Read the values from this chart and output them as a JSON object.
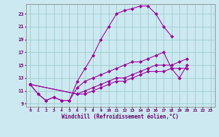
{
  "background_color": "#cce8f0",
  "grid_color": "#99cccc",
  "line_color": "#990099",
  "marker_color": "#990099",
  "xlabel": "Windchill (Refroidissement éolien,°C)",
  "xlabel_color": "#660066",
  "tick_color": "#660066",
  "xlim": [
    -0.5,
    23.5
  ],
  "ylim": [
    8.5,
    24.5
  ],
  "xticks": [
    0,
    1,
    2,
    3,
    4,
    5,
    6,
    7,
    8,
    9,
    10,
    11,
    12,
    13,
    14,
    15,
    16,
    17,
    18,
    19,
    20,
    21,
    22,
    23
  ],
  "yticks": [
    9,
    11,
    13,
    15,
    17,
    19,
    21,
    23
  ],
  "series": [
    {
      "x": [
        0,
        1,
        2,
        3,
        4,
        5,
        6,
        7,
        8,
        9,
        10,
        11,
        12,
        13,
        14,
        15,
        16,
        17,
        18
      ],
      "y": [
        12,
        10.5,
        9.5,
        10,
        9.5,
        9.5,
        12.5,
        14.5,
        16.5,
        19,
        21,
        23,
        23.5,
        23.8,
        24.2,
        24.2,
        23,
        21,
        19.5
      ]
    },
    {
      "x": [
        0,
        1,
        2,
        3,
        4,
        5,
        6,
        7,
        8,
        9,
        10,
        11,
        12,
        13,
        14,
        15,
        16,
        17,
        18,
        19,
        20
      ],
      "y": [
        12,
        10.5,
        9.5,
        10,
        9.5,
        9.5,
        11.5,
        12.5,
        13,
        13.5,
        14,
        14.5,
        15,
        15.5,
        15.5,
        16,
        16.5,
        17,
        14.5,
        13,
        15
      ]
    },
    {
      "x": [
        0,
        6,
        7,
        8,
        9,
        10,
        11,
        12,
        13,
        14,
        15,
        16,
        17,
        18,
        19,
        20
      ],
      "y": [
        12,
        10.5,
        11,
        11.5,
        12,
        12.5,
        13,
        13,
        13.5,
        14,
        14.5,
        15,
        15,
        15,
        15.5,
        16
      ]
    },
    {
      "x": [
        0,
        6,
        7,
        8,
        9,
        10,
        11,
        12,
        13,
        14,
        15,
        16,
        17,
        18,
        19,
        20
      ],
      "y": [
        12,
        10.5,
        10.5,
        11,
        11.5,
        12,
        12.5,
        12.5,
        13,
        13.5,
        14,
        14,
        14,
        14.5,
        14.5,
        14.5
      ]
    }
  ]
}
